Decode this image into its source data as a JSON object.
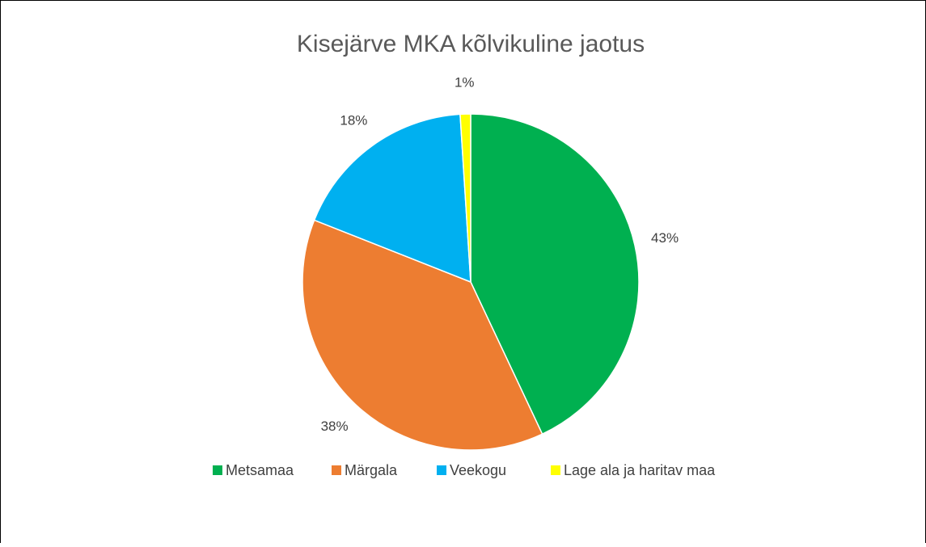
{
  "chart_data": {
    "type": "pie",
    "title": "Kisejärve MKA kõlvikuline jaotus",
    "categories": [
      "Metsamaa",
      "Märgala",
      "Veekogu",
      "Lage ala ja haritav maa"
    ],
    "values": [
      43,
      38,
      18,
      1
    ],
    "value_labels": [
      "43%",
      "38%",
      "18%",
      "1%"
    ],
    "colors": [
      "#00b050",
      "#ed7d31",
      "#00b0f0",
      "#ffff00"
    ],
    "legend": "bottom"
  }
}
